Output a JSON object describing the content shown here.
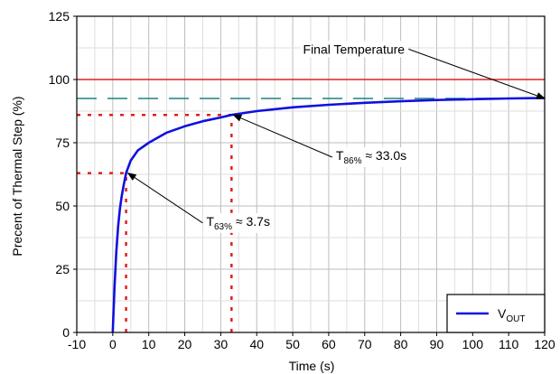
{
  "chart_data": {
    "type": "line",
    "title": "",
    "xlabel": "Time (s)",
    "ylabel": "Precent of Thermal Step (%)",
    "xlim": [
      -10,
      120
    ],
    "ylim": [
      0,
      125
    ],
    "xticks": [
      -10,
      0,
      10,
      20,
      30,
      40,
      50,
      60,
      70,
      80,
      90,
      100,
      110,
      120
    ],
    "yticks": [
      0,
      25,
      50,
      75,
      100,
      125
    ],
    "grid": true,
    "legend_position": "bottom-right",
    "series": [
      {
        "name": "VOUT",
        "legend_main": "V",
        "legend_sub": "OUT",
        "color": "#1010e0",
        "x": [
          0,
          0.5,
          1,
          1.5,
          2,
          2.5,
          3,
          3.7,
          5,
          7,
          10,
          15,
          20,
          25,
          30,
          33,
          40,
          50,
          60,
          70,
          80,
          90,
          100,
          110,
          120
        ],
        "y": [
          0,
          18,
          32,
          42,
          49,
          54,
          58,
          63,
          68,
          72,
          75,
          79,
          81.5,
          83.5,
          85,
          86,
          87.5,
          89,
          90,
          90.8,
          91.4,
          91.9,
          92.2,
          92.5,
          92.7
        ]
      }
    ],
    "reference_lines": [
      {
        "kind": "horizontal",
        "y": 100,
        "color": "#e02020",
        "style": "solid"
      },
      {
        "kind": "horizontal",
        "y": 92.5,
        "color": "#208080",
        "style": "dashed"
      },
      {
        "kind": "horizontal",
        "y": 63,
        "x_from": -10,
        "x_to": 3.7,
        "color": "#e02020",
        "style": "dotted"
      },
      {
        "kind": "vertical",
        "x": 3.7,
        "y_from": 0,
        "y_to": 63,
        "color": "#e02020",
        "style": "dotted"
      },
      {
        "kind": "horizontal",
        "y": 86,
        "x_from": -10,
        "x_to": 33,
        "color": "#e02020",
        "style": "dotted"
      },
      {
        "kind": "vertical",
        "x": 33,
        "y_from": 0,
        "y_to": 86,
        "color": "#e02020",
        "style": "dotted"
      }
    ],
    "annotations": [
      {
        "text": "Final Temperature",
        "parts": [
          "Final Temperature"
        ],
        "text_x": 67,
        "text_y": 112,
        "arrow_to": [
          120,
          92.5
        ]
      },
      {
        "text": "T86% ≈ 33.0s",
        "parts": [
          "T",
          "86%",
          " ≈ 33.0s"
        ],
        "text_x": 62,
        "text_y": 70,
        "arrow_to": [
          33.5,
          86
        ]
      },
      {
        "text": "T63% ≈ 3.7s",
        "parts": [
          "T",
          "63%",
          " ≈ 3.7s"
        ],
        "text_x": 26,
        "text_y": 44,
        "arrow_to": [
          4.2,
          63
        ]
      }
    ]
  }
}
